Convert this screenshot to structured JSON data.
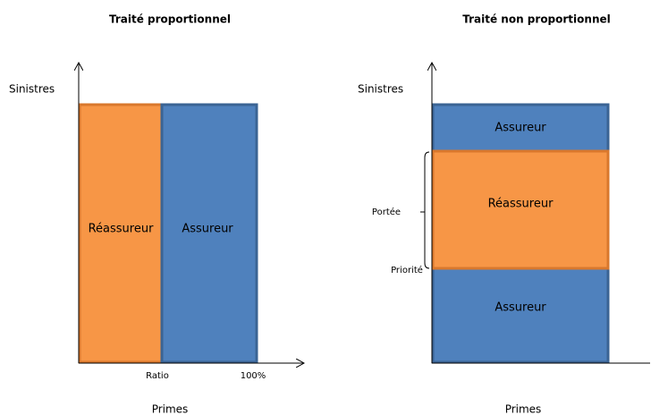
{
  "left": {
    "title": "Traité proportionnel",
    "y_label": "Sinistres",
    "x_label": "Primes",
    "blocks": [
      "Réassureur",
      "Assureur"
    ],
    "ticks": [
      "Ratio",
      "100%"
    ]
  },
  "right": {
    "title": "Traité non proportionnel",
    "y_label": "Sinistres",
    "x_label": "Primes",
    "blocks": [
      "Assureur",
      "Réassureur",
      "Assureur"
    ],
    "markers": [
      "Portée",
      "Priorité"
    ]
  }
}
